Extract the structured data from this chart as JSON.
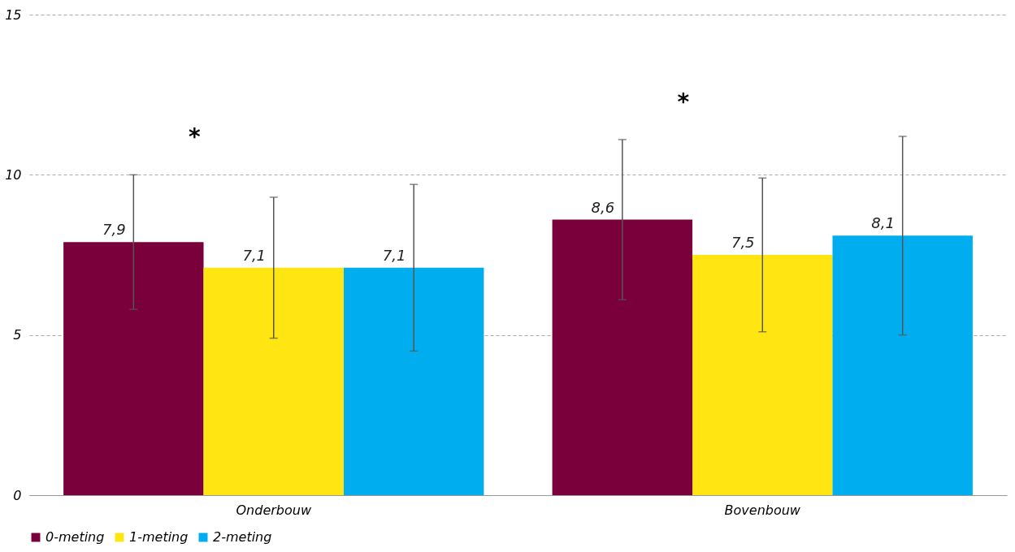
{
  "chart_data": {
    "type": "bar",
    "categories": [
      "Onderbouw",
      "Bovenbouw"
    ],
    "series": [
      {
        "name": "0-meting",
        "color": "#7a003c",
        "values": [
          7.9,
          8.6
        ],
        "errors": [
          [
            5.8,
            10.0
          ],
          [
            6.1,
            11.1
          ]
        ],
        "value_labels": [
          "7,9",
          "8,6"
        ]
      },
      {
        "name": "1-meting",
        "color": "#ffe512",
        "values": [
          7.1,
          7.5
        ],
        "errors": [
          [
            4.9,
            9.3
          ],
          [
            5.1,
            9.9
          ]
        ],
        "value_labels": [
          "7,1",
          "7,5"
        ]
      },
      {
        "name": "2-meting",
        "color": "#00adef",
        "values": [
          7.1,
          8.1
        ],
        "errors": [
          [
            4.5,
            9.7
          ],
          [
            5.0,
            11.2
          ]
        ],
        "value_labels": [
          "7,1",
          "8,1"
        ]
      }
    ],
    "ylim": [
      0,
      15
    ],
    "yticks": [
      0,
      5,
      10,
      15
    ],
    "grid": "y",
    "legend": "bottom",
    "annotations": [
      "*",
      "*"
    ]
  }
}
